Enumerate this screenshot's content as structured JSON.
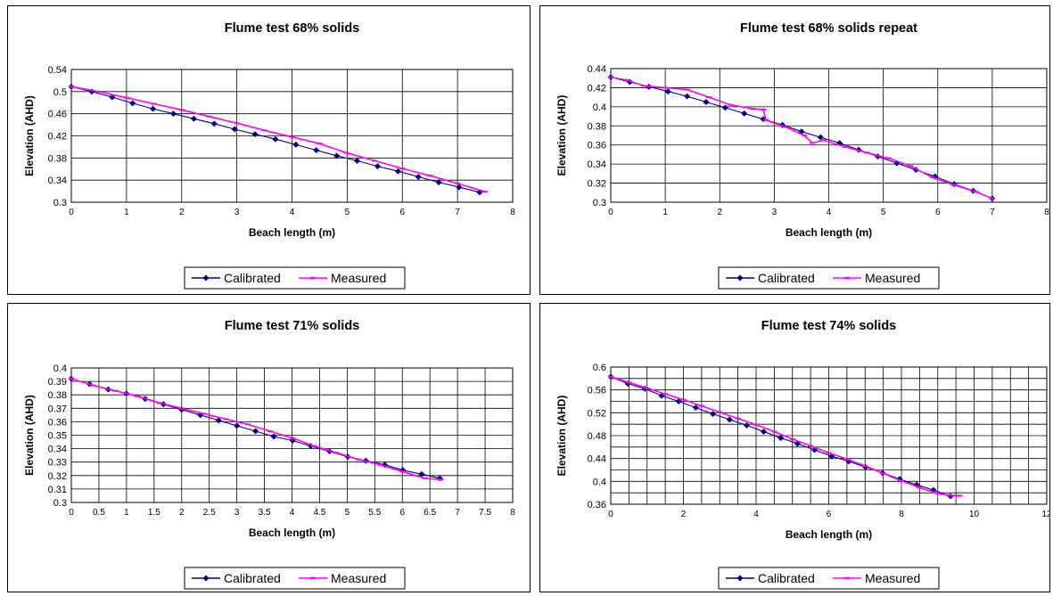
{
  "chart_data": [
    {
      "type": "line",
      "title": "Flume test 68% solids",
      "xlabel": "Beach length (m)",
      "ylabel": "Elevation (AHD)",
      "xlim": [
        0,
        8
      ],
      "ylim": [
        0.3,
        0.54
      ],
      "xticks": [
        0,
        1,
        2,
        3,
        4,
        5,
        6,
        7,
        8
      ],
      "yticks": [
        0.3,
        0.34,
        0.38,
        0.42,
        0.46,
        0.5,
        0.54
      ],
      "xtick_labels": [
        "0",
        "1",
        "2",
        "3",
        "4",
        "5",
        "6",
        "7",
        "8"
      ],
      "ytick_labels": [
        "0.3",
        "0.34",
        "0.38",
        "0.42",
        "0.46",
        "0.5",
        "0.54"
      ],
      "grid": true,
      "legend_position": "bottom",
      "series": [
        {
          "name": "Calibrated",
          "color": "#000080",
          "marker": "diamond",
          "x": [
            0,
            0.37,
            0.74,
            1.11,
            1.48,
            1.85,
            2.22,
            2.59,
            2.96,
            3.33,
            3.7,
            4.07,
            4.44,
            4.81,
            5.18,
            5.55,
            5.92,
            6.29,
            6.66,
            7.03,
            7.4
          ],
          "y": [
            0.509,
            0.5,
            0.49,
            0.479,
            0.469,
            0.46,
            0.451,
            0.442,
            0.432,
            0.423,
            0.414,
            0.404,
            0.394,
            0.384,
            0.375,
            0.365,
            0.356,
            0.346,
            0.336,
            0.327,
            0.318
          ]
        },
        {
          "name": "Measured",
          "color": "#ff00ff",
          "marker": "dash",
          "x": [
            0,
            0.5,
            1.0,
            1.5,
            2.0,
            2.5,
            3.0,
            3.5,
            4.0,
            4.5,
            5.0,
            5.5,
            6.0,
            6.5,
            7.0,
            7.5
          ],
          "y": [
            0.509,
            0.5,
            0.489,
            0.478,
            0.467,
            0.455,
            0.443,
            0.43,
            0.418,
            0.406,
            0.389,
            0.375,
            0.361,
            0.348,
            0.334,
            0.319
          ]
        }
      ]
    },
    {
      "type": "line",
      "title": "Flume test 68% solids repeat",
      "xlabel": "Beach length (m)",
      "ylabel": "Elevation (AHD)",
      "xlim": [
        0,
        8
      ],
      "ylim": [
        0.3,
        0.44
      ],
      "xticks": [
        0,
        1,
        2,
        3,
        4,
        5,
        6,
        7,
        8
      ],
      "yticks": [
        0.3,
        0.32,
        0.34,
        0.36,
        0.38,
        0.4,
        0.42,
        0.44
      ],
      "xtick_labels": [
        "0",
        "1",
        "2",
        "3",
        "4",
        "5",
        "6",
        "7",
        "8"
      ],
      "ytick_labels": [
        "0.3",
        "0.32",
        "0.34",
        "0.36",
        "0.38",
        "0.4",
        "0.42",
        "0.44"
      ],
      "grid": true,
      "legend_position": "bottom",
      "series": [
        {
          "name": "Calibrated",
          "color": "#000080",
          "marker": "diamond",
          "x": [
            0,
            0.35,
            0.7,
            1.05,
            1.4,
            1.75,
            2.1,
            2.45,
            2.8,
            3.15,
            3.5,
            3.85,
            4.2,
            4.55,
            4.9,
            5.25,
            5.6,
            5.95,
            6.3,
            6.65,
            7.0
          ],
          "y": [
            0.431,
            0.426,
            0.421,
            0.416,
            0.411,
            0.405,
            0.399,
            0.393,
            0.387,
            0.381,
            0.374,
            0.368,
            0.362,
            0.355,
            0.348,
            0.341,
            0.334,
            0.327,
            0.319,
            0.312,
            0.304
          ]
        },
        {
          "name": "Measured",
          "color": "#ff00ff",
          "marker": "dash",
          "x": [
            0,
            0.3,
            0.6,
            1.0,
            1.4,
            1.8,
            2.2,
            2.6,
            2.8,
            2.85,
            3.2,
            3.55,
            3.7,
            3.9,
            4.3,
            4.7,
            5.1,
            5.5,
            5.9,
            6.3,
            6.7,
            7.0
          ],
          "y": [
            0.431,
            0.428,
            0.422,
            0.42,
            0.418,
            0.41,
            0.402,
            0.398,
            0.397,
            0.386,
            0.379,
            0.37,
            0.362,
            0.365,
            0.358,
            0.352,
            0.346,
            0.338,
            0.326,
            0.318,
            0.311,
            0.304
          ]
        }
      ]
    },
    {
      "type": "line",
      "title": "Flume test 71% solids",
      "xlabel": "Beach length (m)",
      "ylabel": "Elevation (AHD)",
      "xlim": [
        0,
        8
      ],
      "ylim": [
        0.3,
        0.4
      ],
      "xticks": [
        0,
        0.5,
        1,
        1.5,
        2,
        2.5,
        3,
        3.5,
        4,
        4.5,
        5,
        5.5,
        6,
        6.5,
        7,
        7.5,
        8
      ],
      "yticks": [
        0.3,
        0.31,
        0.32,
        0.33,
        0.34,
        0.35,
        0.36,
        0.37,
        0.38,
        0.39,
        0.4
      ],
      "xtick_labels": [
        "0",
        "0.5",
        "1",
        "1.5",
        "2",
        "2.5",
        "3",
        "3.5",
        "4",
        "4.5",
        "5",
        "5.5",
        "6",
        "6.5",
        "7",
        "7.5",
        "8"
      ],
      "ytick_labels": [
        "0.3",
        "0.31",
        "0.32",
        "0.33",
        "0.34",
        "0.35",
        "0.36",
        "0.37",
        "0.38",
        "0.39",
        "0.4"
      ],
      "grid": true,
      "legend_position": "bottom",
      "series": [
        {
          "name": "Calibrated",
          "color": "#000080",
          "marker": "diamond",
          "x": [
            0,
            0.33,
            0.67,
            1.0,
            1.34,
            1.67,
            2.0,
            2.34,
            2.67,
            3.0,
            3.34,
            3.67,
            4.01,
            4.34,
            4.68,
            5.01,
            5.34,
            5.68,
            6.01,
            6.35,
            6.68
          ],
          "y": [
            0.392,
            0.388,
            0.384,
            0.381,
            0.377,
            0.373,
            0.369,
            0.365,
            0.361,
            0.357,
            0.353,
            0.349,
            0.346,
            0.342,
            0.338,
            0.334,
            0.331,
            0.328,
            0.324,
            0.321,
            0.318
          ]
        },
        {
          "name": "Measured",
          "color": "#ff00ff",
          "marker": "dash",
          "x": [
            0,
            0.4,
            0.8,
            1.2,
            1.6,
            2.0,
            2.4,
            2.8,
            3.2,
            3.6,
            4.0,
            4.4,
            4.8,
            5.2,
            5.6,
            6.0,
            6.4,
            6.7
          ],
          "y": [
            0.392,
            0.387,
            0.383,
            0.379,
            0.374,
            0.37,
            0.366,
            0.362,
            0.358,
            0.353,
            0.348,
            0.342,
            0.337,
            0.332,
            0.328,
            0.323,
            0.318,
            0.317
          ]
        }
      ]
    },
    {
      "type": "line",
      "title": "Flume test 74% solids",
      "xlabel": "Beach length (m)",
      "ylabel": "Elevation (AHD)",
      "xlim": [
        0,
        12
      ],
      "ylim": [
        0.36,
        0.6
      ],
      "xticks": [
        0,
        0.5,
        1,
        1.5,
        2,
        2.5,
        3,
        3.5,
        4,
        4.5,
        5,
        5.5,
        6,
        6.5,
        7,
        7.5,
        8,
        8.5,
        9,
        9.5,
        10,
        10.5,
        11,
        11.5,
        12
      ],
      "yticks": [
        0.36,
        0.38,
        0.4,
        0.42,
        0.44,
        0.46,
        0.48,
        0.5,
        0.52,
        0.54,
        0.56,
        0.58,
        0.6
      ],
      "xtick_labels": [
        "0",
        "",
        "",
        "",
        "2",
        "",
        "",
        "",
        "4",
        "",
        "",
        "",
        "6",
        "",
        "",
        "",
        "8",
        "",
        "",
        "",
        "10",
        "",
        "",
        "",
        "12"
      ],
      "ytick_labels": [
        "0.36",
        "",
        "0.4",
        "",
        "0.44",
        "",
        "0.48",
        "",
        "0.52",
        "",
        "0.56",
        "",
        "0.6"
      ],
      "grid": true,
      "legend_position": "bottom",
      "series": [
        {
          "name": "Calibrated",
          "color": "#000080",
          "marker": "diamond",
          "x": [
            0,
            0.47,
            0.94,
            1.4,
            1.87,
            2.34,
            2.81,
            3.27,
            3.74,
            4.21,
            4.68,
            5.14,
            5.61,
            6.08,
            6.55,
            7.01,
            7.48,
            7.95,
            8.42,
            8.88,
            9.35
          ],
          "y": [
            0.583,
            0.571,
            0.562,
            0.55,
            0.54,
            0.529,
            0.518,
            0.508,
            0.498,
            0.487,
            0.476,
            0.466,
            0.455,
            0.444,
            0.435,
            0.425,
            0.415,
            0.404,
            0.394,
            0.385,
            0.374
          ]
        },
        {
          "name": "Measured",
          "color": "#ff00ff",
          "marker": "dash",
          "x": [
            0,
            0.5,
            1.0,
            1.5,
            2.0,
            2.5,
            3.0,
            3.5,
            4.0,
            4.5,
            5.0,
            5.5,
            6.0,
            6.5,
            7.0,
            7.5,
            8.0,
            8.5,
            9.0,
            9.3,
            9.6
          ],
          "y": [
            0.583,
            0.573,
            0.563,
            0.553,
            0.543,
            0.532,
            0.521,
            0.51,
            0.499,
            0.487,
            0.474,
            0.462,
            0.45,
            0.439,
            0.427,
            0.414,
            0.401,
            0.389,
            0.379,
            0.376,
            0.375
          ]
        }
      ]
    }
  ]
}
